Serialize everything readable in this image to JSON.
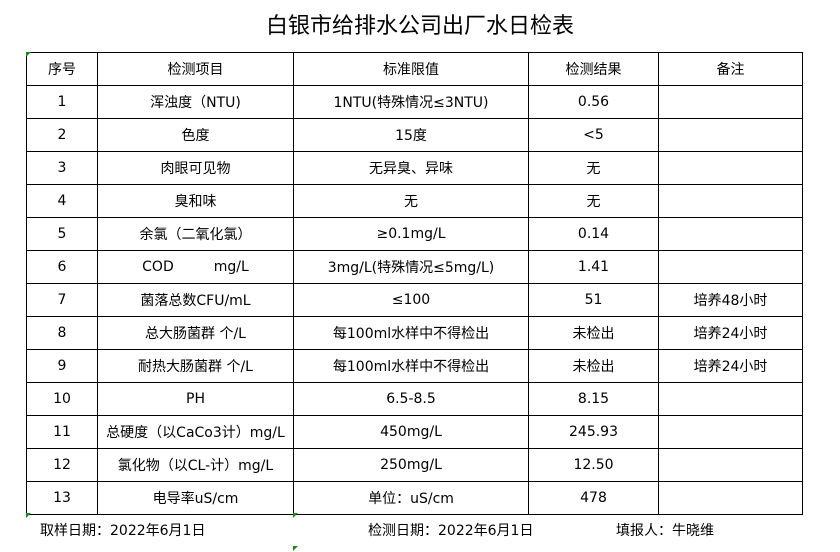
{
  "title": "白银市给排水公司出厂水日检表",
  "headers": [
    "序号",
    "检测项目",
    "标准限值",
    "检测结果",
    "备注"
  ],
  "rows": [
    [
      "1",
      "浑浊度（NTU)",
      "1NTU(特殊情况≤3NTU)",
      "0.56",
      ""
    ],
    [
      "2",
      "色度",
      "15度",
      "<5",
      ""
    ],
    [
      "3",
      "肉眼可见物",
      "无异臭、异味",
      "无",
      ""
    ],
    [
      "4",
      "臭和味",
      "无",
      "无",
      ""
    ],
    [
      "5",
      "余氯（二氧化氯）",
      "≥0.1mg/L",
      "0.14",
      ""
    ],
    [
      "6",
      "COD         mg/L",
      "3mg/L(特殊情况≤5mg/L)",
      "1.41",
      ""
    ],
    [
      "7",
      "菌落总数CFU/mL",
      "≤100",
      "51",
      "培养48小时"
    ],
    [
      "8",
      "总大肠菌群 个/L",
      "每100ml水样中不得检出",
      "未检出",
      "培养24小时"
    ],
    [
      "9",
      "耐热大肠菌群 个/L",
      "每100ml水样中不得检出",
      "未检出",
      "培养24小时"
    ],
    [
      "10",
      "PH",
      "6.5-8.5",
      "8.15",
      ""
    ],
    [
      "11",
      "总硬度（以CaCo3计）mg/L",
      "450mg/L",
      "245.93",
      ""
    ],
    [
      "12",
      "氯化物（以CL-计）mg/L",
      "250mg/L",
      "12.50",
      ""
    ],
    [
      "13",
      "电导率uS/cm",
      "单位：uS/cm",
      "478",
      ""
    ]
  ],
  "footer": {
    "sampling": "取样日期：2022年6月1日",
    "testing": "检测日期：2022年6月1日",
    "filler": "填报人：牛晓维"
  }
}
